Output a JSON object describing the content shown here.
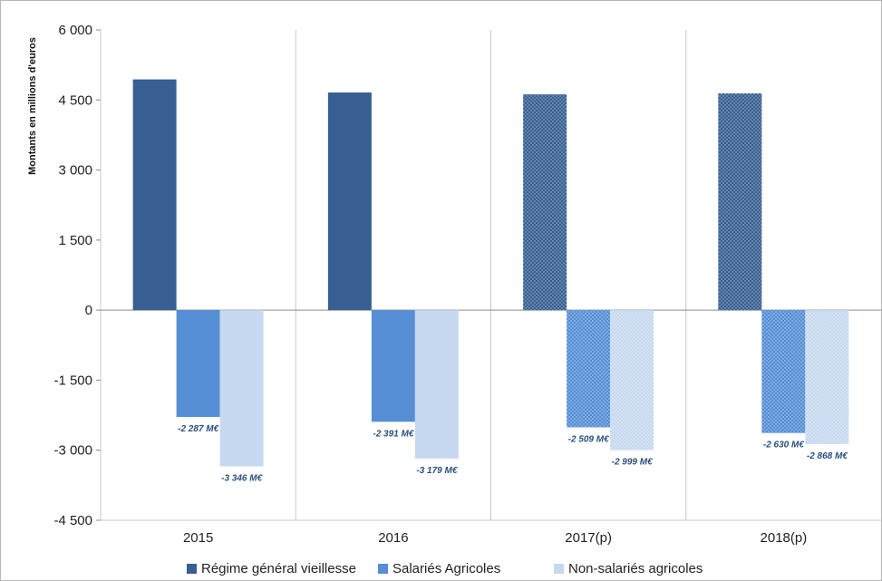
{
  "chart_data": {
    "type": "bar",
    "title": "",
    "xlabel": "",
    "ylabel": "Montants en millions d'euros",
    "ylim": [
      -4500,
      6000
    ],
    "yticks": [
      6000,
      4500,
      3000,
      1500,
      0,
      -1500,
      -3000,
      -4500
    ],
    "ytick_labels": [
      "6 000",
      "4 500",
      "3 000",
      "1 500",
      "0",
      "-1 500",
      "-3 000",
      "-4 500"
    ],
    "categories": [
      "2015",
      "2016",
      "2017(p)",
      "2018(p)"
    ],
    "projected_categories": [
      "2017(p)",
      "2018(p)"
    ],
    "grid": "vertical lines between categories",
    "legend_position": "bottom",
    "series": [
      {
        "name": "Régime général vieillesse",
        "color": "#375f91",
        "values": [
          4940,
          4660,
          4620,
          4640
        ],
        "labels": [
          "",
          "",
          "",
          ""
        ]
      },
      {
        "name": "Salariés Agricoles",
        "color": "#558ed5",
        "values": [
          -2287,
          -2391,
          -2509,
          -2630
        ],
        "labels": [
          "-2 287 M€",
          "-2 391 M€",
          "-2 509 M€",
          "-2 630 M€"
        ]
      },
      {
        "name": "Non-salariés agricoles",
        "color": "#c6d9f1",
        "values": [
          -3346,
          -3179,
          -2999,
          -2868
        ],
        "labels": [
          "-3 346 M€",
          "-3 179 M€",
          "-2 999 M€",
          "-2 868 M€"
        ]
      }
    ]
  }
}
